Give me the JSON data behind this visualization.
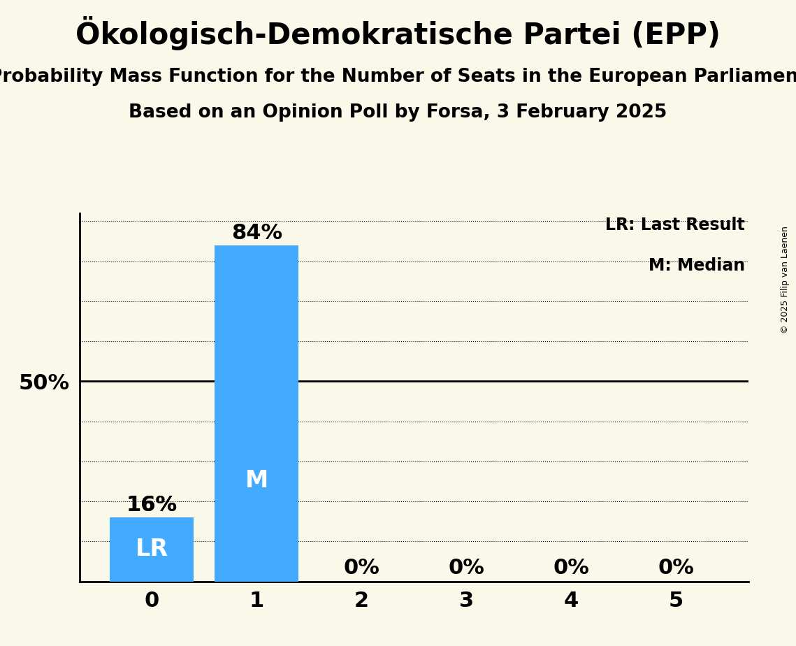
{
  "title": "Ökologisch-Demokratische Partei (EPP)",
  "subtitle1": "Probability Mass Function for the Number of Seats in the European Parliament",
  "subtitle2": "Based on an Opinion Poll by Forsa, 3 February 2025",
  "copyright": "© 2025 Filip van Laenen",
  "seats": [
    0,
    1,
    2,
    3,
    4,
    5
  ],
  "probabilities": [
    0.16,
    0.84,
    0.0,
    0.0,
    0.0,
    0.0
  ],
  "bar_color": "#42aaff",
  "background_color": "#faf8e8",
  "last_result_seat": 0,
  "median_seat": 1,
  "ylim": [
    0,
    0.92
  ],
  "legend_lr": "LR: Last Result",
  "legend_m": "M: Median",
  "title_fontsize": 30,
  "subtitle_fontsize": 19,
  "bar_label_fontsize": 22,
  "axis_label_fontsize": 22,
  "tick_label_fontsize": 22,
  "legend_fontsize": 17,
  "bar_text_fontsize": 24,
  "dotted_gridlines": [
    0.1,
    0.2,
    0.3,
    0.4,
    0.6,
    0.7,
    0.8,
    0.9
  ],
  "solid_gridlines": [
    0.5
  ]
}
